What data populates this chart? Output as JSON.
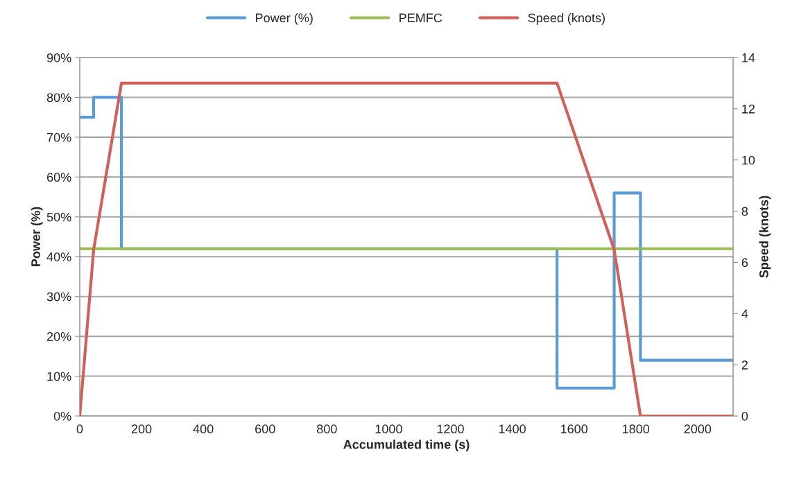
{
  "chart_data": {
    "type": "line",
    "xlabel": "Accumulated time (s)",
    "ylabel": "Power (%)",
    "y2label": "Speed (knots)",
    "series": [
      {
        "name": "Power (%)",
        "type": "step",
        "color": "#5b9bd5",
        "x": [
          0,
          45,
          135,
          1545,
          1730,
          1815,
          2115
        ],
        "values": [
          75,
          80,
          42,
          7,
          56,
          14,
          14
        ]
      },
      {
        "name": "PEMFC",
        "color": "#9bbb59",
        "x": [
          0,
          2115
        ],
        "values": [
          42,
          42
        ]
      },
      {
        "name": "Speed (knots)",
        "axis": "y2",
        "color": "#d0605a",
        "x": [
          0,
          45,
          135,
          1545,
          1730,
          1815,
          2115
        ],
        "values": [
          0,
          6.5,
          13,
          13,
          6.5,
          0,
          0
        ]
      }
    ],
    "xlim": [
      0,
      2115
    ],
    "xticks": [
      0,
      200,
      400,
      600,
      800,
      1000,
      1200,
      1400,
      1600,
      1800,
      2000
    ],
    "ylim": [
      0,
      90
    ],
    "yticks": [
      {
        "value": 0,
        "label": "0%"
      },
      {
        "value": 10,
        "label": "10%"
      },
      {
        "value": 20,
        "label": "20%"
      },
      {
        "value": 30,
        "label": "30%"
      },
      {
        "value": 40,
        "label": "40%"
      },
      {
        "value": 50,
        "label": "50%"
      },
      {
        "value": 60,
        "label": "60%"
      },
      {
        "value": 70,
        "label": "70%"
      },
      {
        "value": 80,
        "label": "80%"
      },
      {
        "value": 90,
        "label": "90%"
      }
    ],
    "y2lim": [
      0,
      14
    ],
    "y2ticks": [
      0,
      2,
      4,
      6,
      8,
      10,
      12,
      14
    ],
    "grid": "y",
    "legend": "top",
    "marker": "none",
    "line_style": "solid"
  }
}
